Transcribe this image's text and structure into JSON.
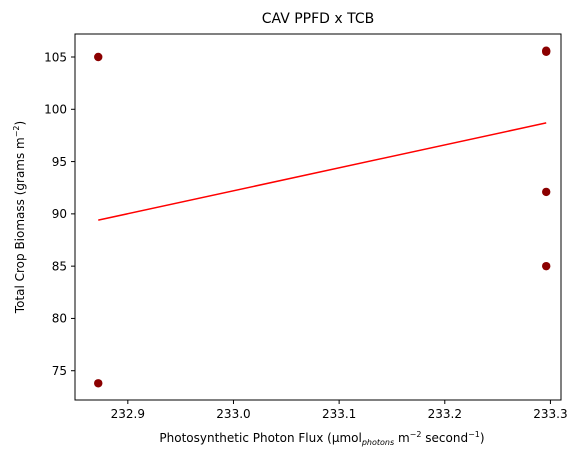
{
  "chart_data": {
    "type": "scatter",
    "title": "CAV PPFD x TCB",
    "xlabel": {
      "main": "Photosynthetic Photon Flux (µmol",
      "sub": "photons",
      "mid": " m",
      "sup1": "−2",
      "end": " second",
      "sup2": "−1",
      "close": ")"
    },
    "ylabel": {
      "main": "Total Crop Biomass (grams m",
      "sup": "−2",
      "close": ")"
    },
    "xlim": [
      232.85,
      233.31
    ],
    "ylim": [
      72.2,
      107.2
    ],
    "x_ticks": [
      232.9,
      233.0,
      233.1,
      233.2,
      233.3
    ],
    "x_tick_labels": [
      "232.9",
      "233.0",
      "233.1",
      "233.2",
      "233.3"
    ],
    "y_ticks": [
      75,
      80,
      85,
      90,
      95,
      100,
      105
    ],
    "y_tick_labels": [
      "75",
      "80",
      "85",
      "90",
      "95",
      "100",
      "105"
    ],
    "grid": false,
    "points": [
      {
        "x": 232.872,
        "y": 105.0
      },
      {
        "x": 232.872,
        "y": 73.8
      },
      {
        "x": 233.296,
        "y": 105.5
      },
      {
        "x": 233.296,
        "y": 105.6
      },
      {
        "x": 233.296,
        "y": 92.1
      },
      {
        "x": 233.296,
        "y": 85.0
      }
    ],
    "fit_line": {
      "x": [
        232.872,
        233.296
      ],
      "y": [
        89.4,
        98.7
      ]
    },
    "colors": {
      "points": "#8b0000",
      "fit_line": "#ff0000"
    }
  }
}
